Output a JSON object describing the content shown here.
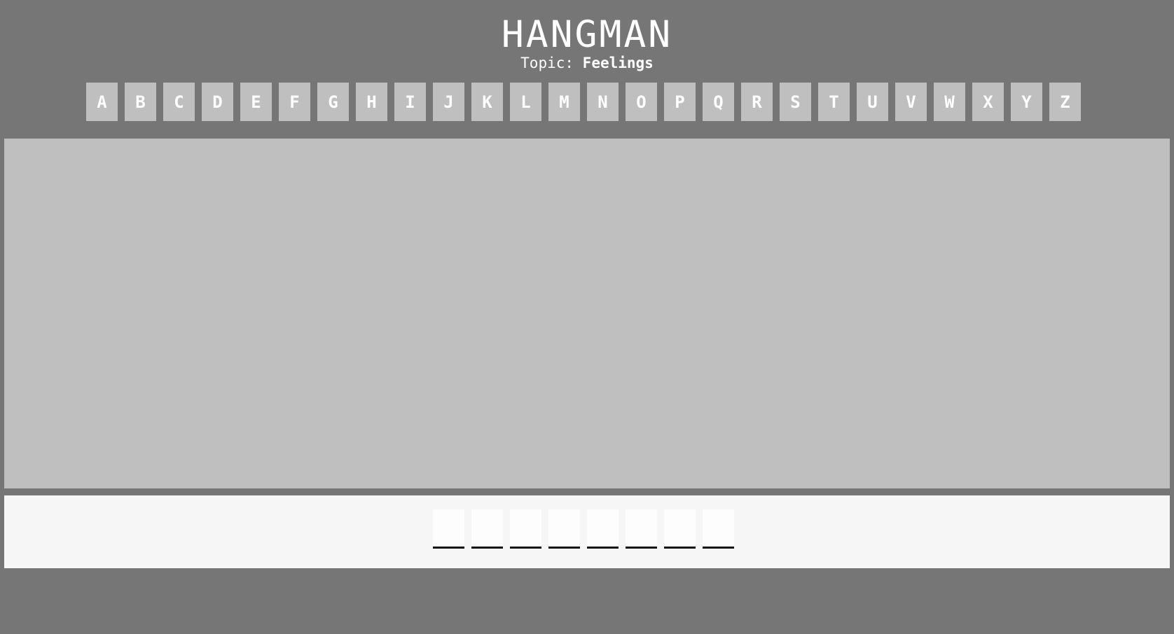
{
  "header": {
    "title": "HANGMAN",
    "topic_label": "Topic:",
    "topic_value": "Feelings"
  },
  "letters": [
    "A",
    "B",
    "C",
    "D",
    "E",
    "F",
    "G",
    "H",
    "I",
    "J",
    "K",
    "L",
    "M",
    "N",
    "O",
    "P",
    "Q",
    "R",
    "S",
    "T",
    "U",
    "V",
    "W",
    "X",
    "Y",
    "Z"
  ],
  "word": {
    "length": 8,
    "revealed": [
      "",
      "",
      "",
      "",
      "",
      "",
      "",
      ""
    ]
  },
  "colors": {
    "background": "#767676",
    "button": "#bfbfbf",
    "board": "#bfbfbf",
    "word_panel": "#f6f6f6"
  }
}
